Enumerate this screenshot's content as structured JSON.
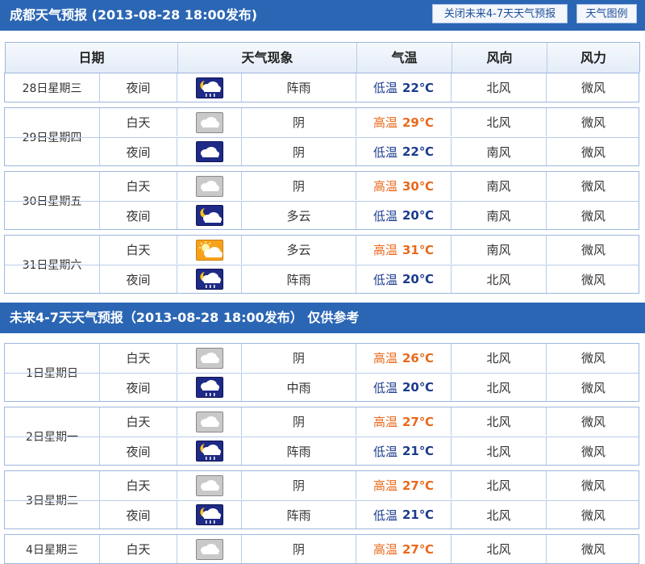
{
  "section1": {
    "title": "成都天气预报 (2013-08-28  18:00发布)",
    "close_btn": "关闭未来4-7天天气预报",
    "legend_btn": "天气图例"
  },
  "headers": [
    "日期",
    "天气现象",
    "气温",
    "风向",
    "风力"
  ],
  "section2": {
    "title": "未来4-7天天气预报（2013-08-28 18:00发布）    仅供参考"
  },
  "labels": {
    "day": "白天",
    "night": "夜间",
    "high": "高温",
    "low": "低温"
  },
  "groups1": [
    {
      "date": "28日星期三",
      "rows": [
        {
          "period": "夜间",
          "icon": "night-shower",
          "phen": "阵雨",
          "temp_label": "低温",
          "temp": "22℃",
          "dir": "北风",
          "pow": "微风"
        }
      ]
    },
    {
      "date": "29日星期四",
      "rows": [
        {
          "period": "白天",
          "icon": "cloudy",
          "phen": "阴",
          "temp_label": "高温",
          "temp": "29℃",
          "dir": "北风",
          "pow": "微风"
        },
        {
          "period": "夜间",
          "icon": "night-cloudy",
          "phen": "阴",
          "temp_label": "低温",
          "temp": "22℃",
          "dir": "南风",
          "pow": "微风"
        }
      ]
    },
    {
      "date": "30日星期五",
      "rows": [
        {
          "period": "白天",
          "icon": "cloudy",
          "phen": "阴",
          "temp_label": "高温",
          "temp": "30℃",
          "dir": "南风",
          "pow": "微风"
        },
        {
          "period": "夜间",
          "icon": "night-partly-cloudy",
          "phen": "多云",
          "temp_label": "低温",
          "temp": "20℃",
          "dir": "南风",
          "pow": "微风"
        }
      ]
    },
    {
      "date": "31日星期六",
      "rows": [
        {
          "period": "白天",
          "icon": "sunny-partly-cloudy",
          "phen": "多云",
          "temp_label": "高温",
          "temp": "31℃",
          "dir": "南风",
          "pow": "微风"
        },
        {
          "period": "夜间",
          "icon": "night-shower",
          "phen": "阵雨",
          "temp_label": "低温",
          "temp": "20℃",
          "dir": "北风",
          "pow": "微风"
        }
      ]
    }
  ],
  "groups2": [
    {
      "date": "1日星期日",
      "rows": [
        {
          "period": "白天",
          "icon": "cloudy",
          "phen": "阴",
          "temp_label": "高温",
          "temp": "26℃",
          "dir": "北风",
          "pow": "微风"
        },
        {
          "period": "夜间",
          "icon": "night-rain",
          "phen": "中雨",
          "temp_label": "低温",
          "temp": "20℃",
          "dir": "北风",
          "pow": "微风"
        }
      ]
    },
    {
      "date": "2日星期一",
      "rows": [
        {
          "period": "白天",
          "icon": "cloudy",
          "phen": "阴",
          "temp_label": "高温",
          "temp": "27℃",
          "dir": "北风",
          "pow": "微风"
        },
        {
          "period": "夜间",
          "icon": "night-shower",
          "phen": "阵雨",
          "temp_label": "低温",
          "temp": "21℃",
          "dir": "北风",
          "pow": "微风"
        }
      ]
    },
    {
      "date": "3日星期二",
      "rows": [
        {
          "period": "白天",
          "icon": "cloudy",
          "phen": "阴",
          "temp_label": "高温",
          "temp": "27℃",
          "dir": "北风",
          "pow": "微风"
        },
        {
          "period": "夜间",
          "icon": "night-shower",
          "phen": "阵雨",
          "temp_label": "低温",
          "temp": "21℃",
          "dir": "北风",
          "pow": "微风"
        }
      ]
    },
    {
      "date": "4日星期三",
      "rows": [
        {
          "period": "白天",
          "icon": "cloudy",
          "phen": "阴",
          "temp_label": "高温",
          "temp": "27℃",
          "dir": "北风",
          "pow": "微风"
        }
      ]
    }
  ],
  "colors": {
    "header_bar": "#2b66b4",
    "high_temp": "#e8691b",
    "low_temp": "#1b3b8c"
  }
}
